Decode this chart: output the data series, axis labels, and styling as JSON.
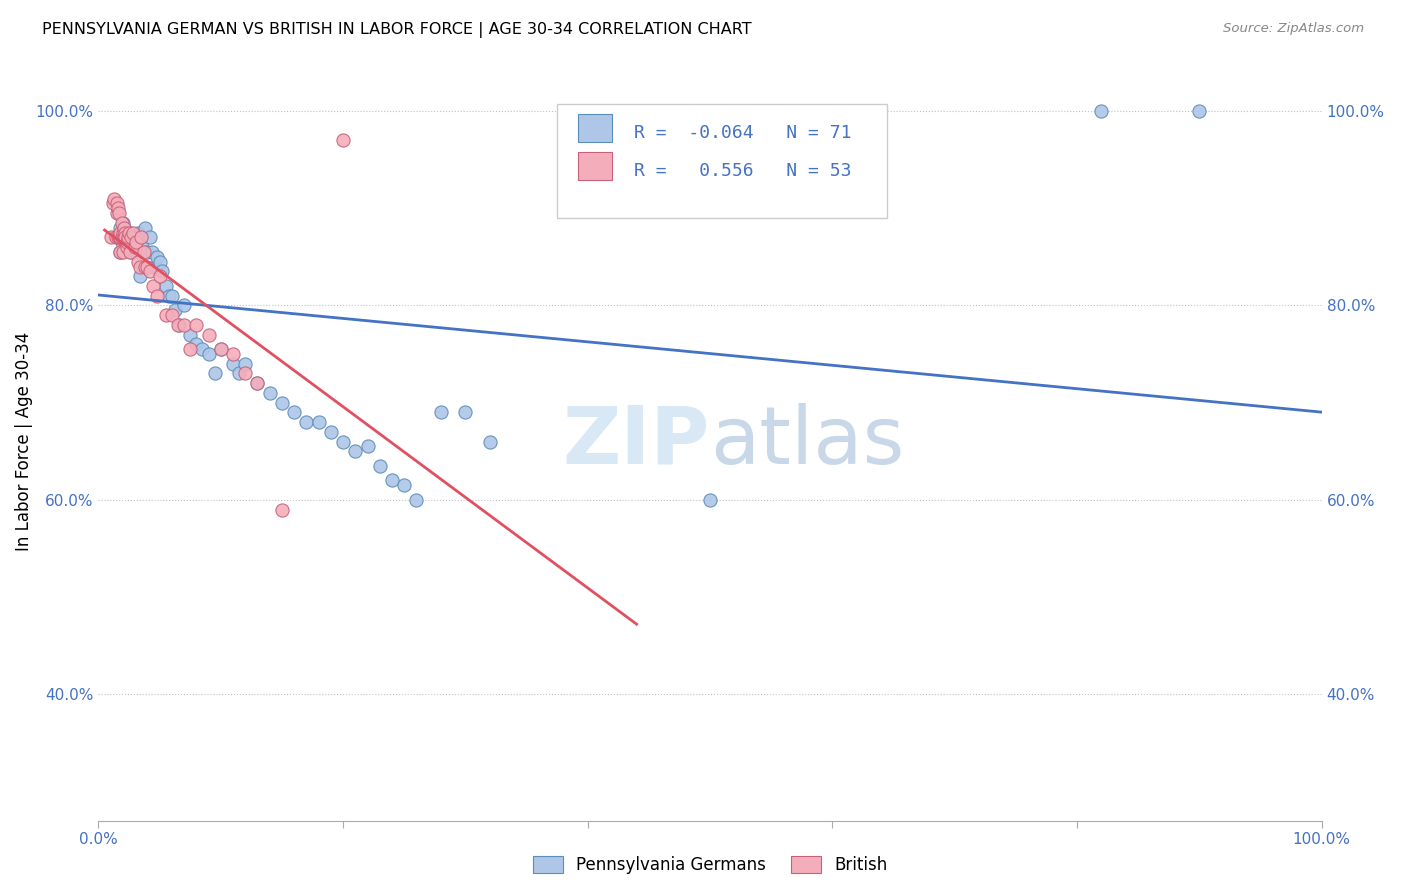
{
  "title": "PENNSYLVANIA GERMAN VS BRITISH IN LABOR FORCE | AGE 30-34 CORRELATION CHART",
  "source": "Source: ZipAtlas.com",
  "ylabel": "In Labor Force | Age 30-34",
  "xlim": [
    0,
    1
  ],
  "ylim": [
    0.27,
    1.05
  ],
  "y_ticks": [
    0.4,
    0.6,
    0.8,
    1.0
  ],
  "y_tick_labels": [
    "40.0%",
    "60.0%",
    "80.0%",
    "100.0%"
  ],
  "x_tick_labels": [
    "0.0%",
    "100.0%"
  ],
  "blue_R": -0.064,
  "blue_N": 71,
  "pink_R": 0.556,
  "pink_N": 53,
  "blue_color": "#AEC6E8",
  "blue_edge_color": "#5B8DB8",
  "pink_color": "#F4AEBB",
  "pink_edge_color": "#C9607A",
  "blue_line_color": "#4472C4",
  "pink_line_color": "#E05060",
  "legend_label_blue": "Pennsylvania Germans",
  "legend_label_pink": "British",
  "watermark_zip": "ZIP",
  "watermark_atlas": "atlas",
  "blue_x": [
    0.018,
    0.018,
    0.018,
    0.019,
    0.019,
    0.02,
    0.02,
    0.021,
    0.021,
    0.022,
    0.022,
    0.023,
    0.023,
    0.024,
    0.025,
    0.025,
    0.026,
    0.027,
    0.028,
    0.029,
    0.03,
    0.03,
    0.031,
    0.032,
    0.033,
    0.034,
    0.035,
    0.036,
    0.038,
    0.04,
    0.042,
    0.044,
    0.046,
    0.048,
    0.05,
    0.052,
    0.055,
    0.058,
    0.06,
    0.063,
    0.066,
    0.07,
    0.075,
    0.08,
    0.085,
    0.09,
    0.095,
    0.1,
    0.11,
    0.115,
    0.12,
    0.13,
    0.14,
    0.15,
    0.16,
    0.17,
    0.18,
    0.19,
    0.2,
    0.21,
    0.22,
    0.23,
    0.24,
    0.25,
    0.26,
    0.28,
    0.3,
    0.32,
    0.5,
    0.82,
    0.9
  ],
  "blue_y": [
    0.87,
    0.88,
    0.855,
    0.87,
    0.865,
    0.87,
    0.885,
    0.875,
    0.88,
    0.87,
    0.865,
    0.875,
    0.87,
    0.865,
    0.87,
    0.86,
    0.875,
    0.855,
    0.87,
    0.865,
    0.855,
    0.87,
    0.86,
    0.875,
    0.87,
    0.83,
    0.87,
    0.86,
    0.88,
    0.855,
    0.87,
    0.855,
    0.84,
    0.85,
    0.845,
    0.835,
    0.82,
    0.81,
    0.81,
    0.795,
    0.78,
    0.8,
    0.77,
    0.76,
    0.755,
    0.75,
    0.73,
    0.755,
    0.74,
    0.73,
    0.74,
    0.72,
    0.71,
    0.7,
    0.69,
    0.68,
    0.68,
    0.67,
    0.66,
    0.65,
    0.655,
    0.635,
    0.62,
    0.615,
    0.6,
    0.69,
    0.69,
    0.66,
    0.6,
    1.0,
    1.0
  ],
  "pink_x": [
    0.01,
    0.012,
    0.013,
    0.014,
    0.015,
    0.015,
    0.016,
    0.016,
    0.017,
    0.017,
    0.018,
    0.018,
    0.018,
    0.019,
    0.019,
    0.02,
    0.02,
    0.021,
    0.021,
    0.022,
    0.022,
    0.023,
    0.023,
    0.024,
    0.025,
    0.026,
    0.027,
    0.028,
    0.03,
    0.031,
    0.032,
    0.034,
    0.035,
    0.037,
    0.038,
    0.04,
    0.042,
    0.045,
    0.048,
    0.05,
    0.055,
    0.06,
    0.065,
    0.07,
    0.075,
    0.08,
    0.09,
    0.1,
    0.11,
    0.12,
    0.13,
    0.15,
    0.2
  ],
  "pink_y": [
    0.87,
    0.905,
    0.91,
    0.87,
    0.905,
    0.895,
    0.87,
    0.9,
    0.87,
    0.895,
    0.855,
    0.87,
    0.875,
    0.87,
    0.885,
    0.855,
    0.875,
    0.87,
    0.88,
    0.875,
    0.87,
    0.86,
    0.865,
    0.87,
    0.875,
    0.855,
    0.87,
    0.875,
    0.86,
    0.865,
    0.845,
    0.84,
    0.87,
    0.855,
    0.84,
    0.84,
    0.835,
    0.82,
    0.81,
    0.83,
    0.79,
    0.79,
    0.78,
    0.78,
    0.755,
    0.78,
    0.77,
    0.755,
    0.75,
    0.73,
    0.72,
    0.59,
    0.97
  ]
}
